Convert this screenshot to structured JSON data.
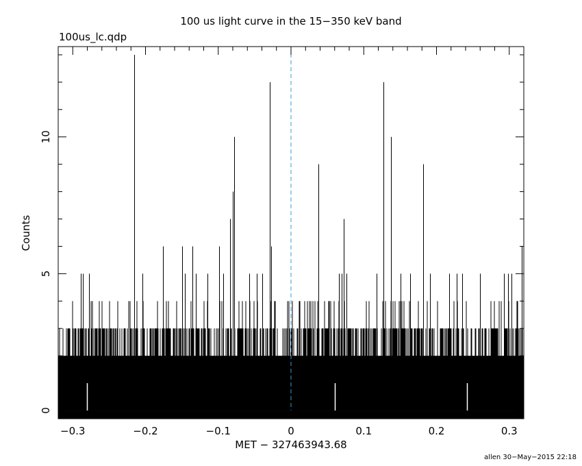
{
  "chart_data": {
    "type": "bar",
    "title": "100 us light curve in the 15−350 keV band",
    "filename": "100us_lc.qdp",
    "xlabel": "MET − 327463943.68",
    "ylabel": "Counts",
    "footer": "allen 30−May−2015 22:18",
    "xlim": [
      -0.32,
      0.32
    ],
    "ylim": [
      -0.3,
      13.3
    ],
    "x_ticks": [
      -0.3,
      -0.2,
      -0.1,
      0,
      0.1,
      0.2,
      0.3
    ],
    "x_tick_labels": [
      "−0.3",
      "−0.2",
      "−0.1",
      "0",
      "0.1",
      "0.2",
      "0.3"
    ],
    "y_ticks": [
      0,
      5,
      10
    ],
    "y_tick_labels": [
      "0",
      "5",
      "10"
    ],
    "bin_width": 0.0001,
    "background_level": 2,
    "reference_line": {
      "x": 0,
      "style": "dashed",
      "color": "#3a9ad9"
    },
    "colors": {
      "data": "#000000",
      "axes": "#000000"
    },
    "peaks": [
      {
        "x": -0.2155,
        "value": 13
      },
      {
        "x": -0.029,
        "value": 12
      },
      {
        "x": 0.127,
        "value": 12
      },
      {
        "x": -0.078,
        "value": 10
      },
      {
        "x": 0.137,
        "value": 10
      },
      {
        "x": 0.038,
        "value": 9
      },
      {
        "x": 0.1815,
        "value": 9
      },
      {
        "x": -0.08,
        "value": 8
      },
      {
        "x": -0.084,
        "value": 7
      },
      {
        "x": 0.072,
        "value": 7
      },
      {
        "x": -0.176,
        "value": 6
      },
      {
        "x": -0.15,
        "value": 6
      },
      {
        "x": -0.136,
        "value": 6
      },
      {
        "x": -0.099,
        "value": 6
      },
      {
        "x": -0.027,
        "value": 6
      },
      {
        "x": 0.317,
        "value": 6
      },
      {
        "x": -0.289,
        "value": 5
      },
      {
        "x": -0.286,
        "value": 5
      },
      {
        "x": -0.278,
        "value": 5
      },
      {
        "x": -0.204,
        "value": 5
      },
      {
        "x": -0.146,
        "value": 5
      },
      {
        "x": -0.131,
        "value": 5
      },
      {
        "x": -0.115,
        "value": 5
      },
      {
        "x": -0.093,
        "value": 5
      },
      {
        "x": -0.057,
        "value": 5
      },
      {
        "x": -0.047,
        "value": 5
      },
      {
        "x": -0.04,
        "value": 5
      },
      {
        "x": 0.066,
        "value": 5
      },
      {
        "x": 0.07,
        "value": 5
      },
      {
        "x": 0.076,
        "value": 5
      },
      {
        "x": 0.118,
        "value": 5
      },
      {
        "x": 0.151,
        "value": 5
      },
      {
        "x": 0.164,
        "value": 5
      },
      {
        "x": 0.191,
        "value": 5
      },
      {
        "x": 0.217,
        "value": 5
      },
      {
        "x": 0.228,
        "value": 5
      },
      {
        "x": 0.235,
        "value": 5
      },
      {
        "x": 0.26,
        "value": 5
      },
      {
        "x": 0.293,
        "value": 5
      },
      {
        "x": 0.298,
        "value": 5
      },
      {
        "x": 0.303,
        "value": 5
      }
    ],
    "gaps": [
      {
        "x": -0.28,
        "value": 0
      },
      {
        "x": 0.06,
        "value": 0
      },
      {
        "x": 0.242,
        "value": 0
      }
    ]
  }
}
